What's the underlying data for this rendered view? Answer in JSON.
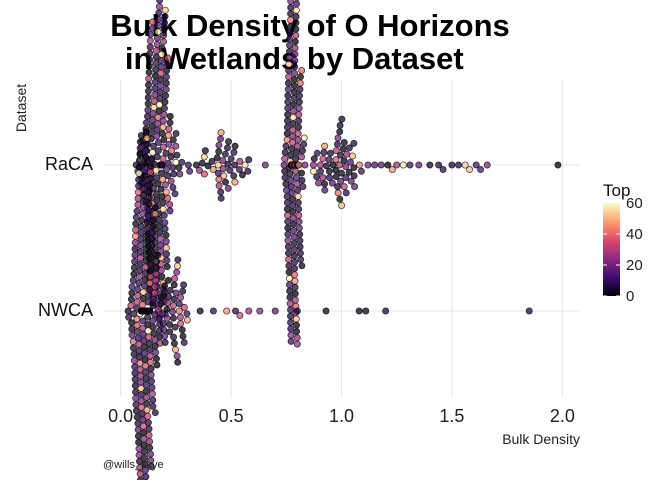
{
  "chart_data": {
    "type": "scatter",
    "subtype": "beeswarm",
    "title_line1": "Bulk Density of O Horizons",
    "title_line2": " in Wetlands by Dataset",
    "xlabel": "Bulk Density",
    "ylabel": "Dataset",
    "xlim": [
      -0.08,
      2.08
    ],
    "x_ticks": [
      0.0,
      0.5,
      1.0,
      1.5,
      2.0
    ],
    "x_tick_labels": [
      "0.0",
      "0.5",
      "1.0",
      "1.5",
      "2.0"
    ],
    "categories": [
      "RaCA",
      "NWCA"
    ],
    "color_legend": {
      "title": "Top",
      "min": 0,
      "max": 60,
      "ticks": [
        0,
        20,
        40,
        60
      ],
      "tick_labels": [
        "0",
        "20",
        "40",
        "60"
      ],
      "palette": [
        "#000004",
        "#3b0f70",
        "#8c2981",
        "#de4968",
        "#fe9f6d",
        "#fcfdbf"
      ]
    },
    "caption": "@wills_skye",
    "grid": true,
    "legend_position": "right",
    "series": [
      {
        "name": "RaCA",
        "clusters": [
          {
            "center": 0.17,
            "spread": 0.055,
            "count": 230
          },
          {
            "center": 0.46,
            "spread": 0.1,
            "count": 45
          },
          {
            "center": 0.78,
            "spread": 0.03,
            "count": 190
          },
          {
            "center": 0.98,
            "spread": 0.08,
            "count": 55
          }
        ],
        "sparse_points": [
          1.05,
          1.09,
          1.12,
          1.15,
          1.18,
          1.21,
          1.23,
          1.25,
          1.28,
          1.31,
          1.35,
          1.4,
          1.44,
          1.46,
          1.5,
          1.53,
          1.56,
          1.58,
          1.61,
          1.63,
          1.66,
          1.98
        ]
      },
      {
        "name": "NWCA",
        "clusters": [
          {
            "center": 0.11,
            "spread": 0.04,
            "count": 300
          },
          {
            "center": 0.24,
            "spread": 0.06,
            "count": 45
          }
        ],
        "sparse_points": [
          0.36,
          0.42,
          0.48,
          0.52,
          0.54,
          0.58,
          0.63,
          0.7,
          0.8,
          0.93,
          1.08,
          1.11,
          1.2,
          1.85
        ]
      }
    ]
  }
}
